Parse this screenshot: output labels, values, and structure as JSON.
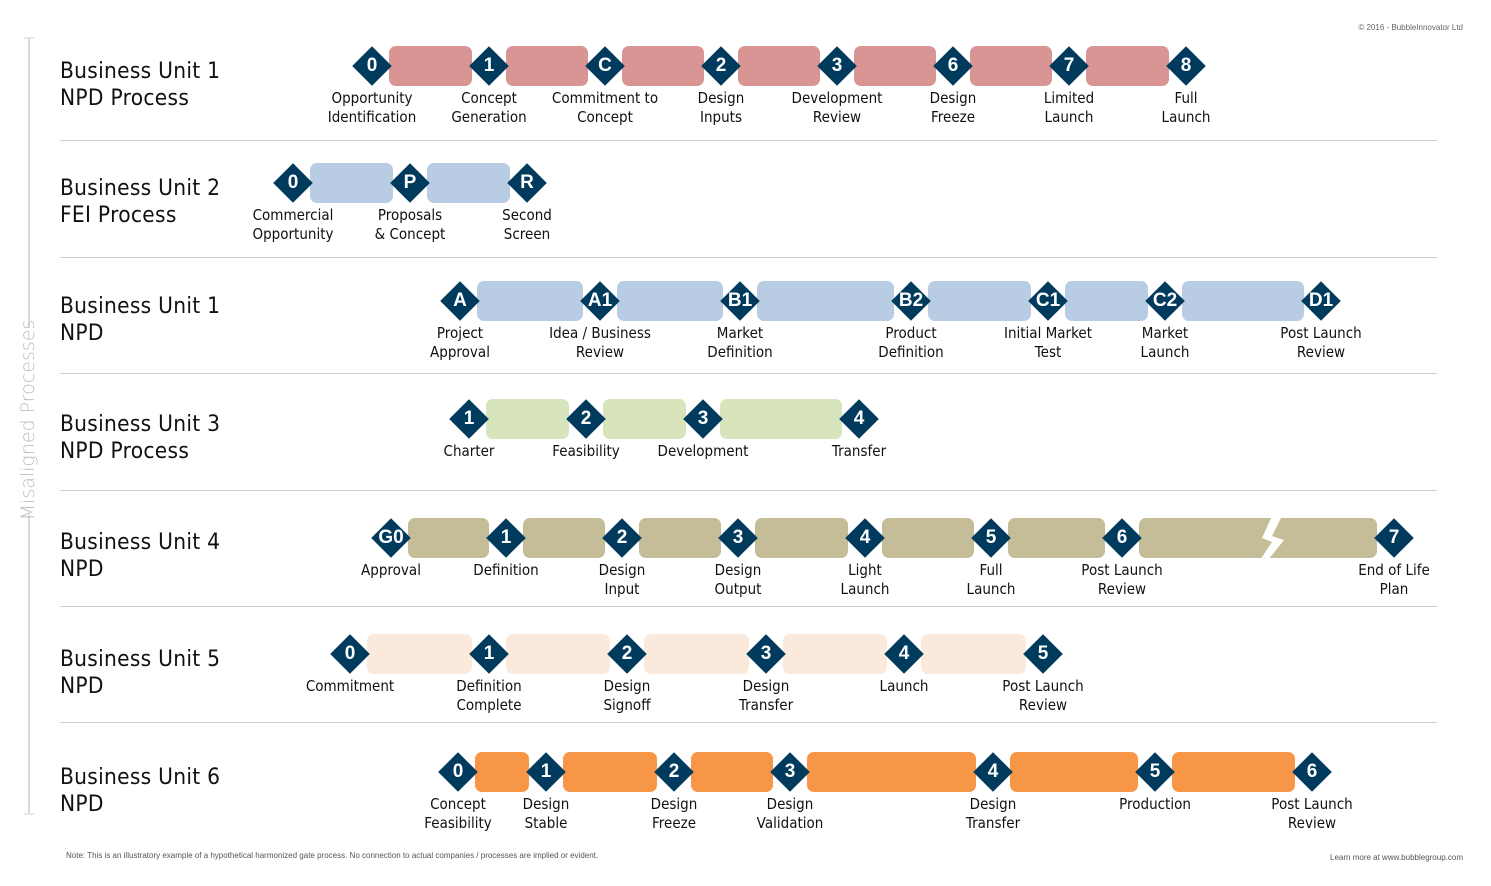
{
  "copyright": "© 2016 -  BubbleInnovator Ltd",
  "side_label": "Misaligned Processes",
  "note": "Note: This is an illustratory example of a hypothetical harmonized gate process. No connection to actual companies / processes are implied or evident.",
  "learn_more": "Learn more at www.bubblegroup.com",
  "gate_color": "#003a5d",
  "rows": [
    {
      "title": "Business Unit 1\nNPD Process",
      "bar_color": "#d99594",
      "gates": [
        {
          "id": "0",
          "label": "Opportunity\nIdentification"
        },
        {
          "id": "1",
          "label": "Concept\nGeneration"
        },
        {
          "id": "C",
          "label": "Commitment to\nConcept"
        },
        {
          "id": "2",
          "label": "Design\nInputs"
        },
        {
          "id": "3",
          "label": "Development\nReview"
        },
        {
          "id": "6",
          "label": "Design\nFreeze"
        },
        {
          "id": "7",
          "label": "Limited\nLaunch"
        },
        {
          "id": "8",
          "label": "Full\nLaunch"
        }
      ]
    },
    {
      "title": "Business Unit 2\nFEI Process",
      "bar_color": "#b8cce4",
      "gates": [
        {
          "id": "0",
          "label": "Commercial\nOpportunity"
        },
        {
          "id": "P",
          "label": "Proposals\n& Concept"
        },
        {
          "id": "R",
          "label": "Second\nScreen"
        }
      ]
    },
    {
      "title": "Business Unit 1\nNPD",
      "bar_color": "#b8cce4",
      "gates": [
        {
          "id": "A",
          "label": "Project\nApproval"
        },
        {
          "id": "A1",
          "label": "Idea / Business\nReview"
        },
        {
          "id": "B1",
          "label": "Market\nDefinition"
        },
        {
          "id": "B2",
          "label": "Product\nDefinition"
        },
        {
          "id": "C1",
          "label": "Initial Market\nTest"
        },
        {
          "id": "C2",
          "label": "Market\nLaunch"
        },
        {
          "id": "D1",
          "label": "Post Launch\nReview"
        }
      ]
    },
    {
      "title": "Business Unit 3\nNPD Process",
      "bar_color": "#d7e4bc",
      "gates": [
        {
          "id": "1",
          "label": "Charter"
        },
        {
          "id": "2",
          "label": "Feasibility"
        },
        {
          "id": "3",
          "label": "Development"
        },
        {
          "id": "4",
          "label": "Transfer"
        }
      ]
    },
    {
      "title": "Business Unit 4\nNPD",
      "bar_color": "#c4bd97",
      "gates": [
        {
          "id": "G0",
          "label": "Approval"
        },
        {
          "id": "1",
          "label": "Definition"
        },
        {
          "id": "2",
          "label": "Design\nInput"
        },
        {
          "id": "3",
          "label": "Design\nOutput"
        },
        {
          "id": "4",
          "label": "Light\nLaunch"
        },
        {
          "id": "5",
          "label": "Full\nLaunch"
        },
        {
          "id": "6",
          "label": "Post Launch\nReview"
        },
        {
          "id": "7",
          "label": "End of Life\nPlan"
        }
      ]
    },
    {
      "title": "Business Unit 5\nNPD",
      "bar_color": "#fbeadb",
      "gates": [
        {
          "id": "0",
          "label": "Commitment"
        },
        {
          "id": "1",
          "label": "Definition\nComplete"
        },
        {
          "id": "2",
          "label": "Design\nSignoff"
        },
        {
          "id": "3",
          "label": "Design\nTransfer"
        },
        {
          "id": "4",
          "label": "Launch"
        },
        {
          "id": "5",
          "label": "Post Launch\nReview"
        }
      ]
    },
    {
      "title": "Business Unit 6\nNPD",
      "bar_color": "#f79646",
      "gates": [
        {
          "id": "0",
          "label": "Concept\nFeasibility"
        },
        {
          "id": "1",
          "label": "Design\nStable"
        },
        {
          "id": "2",
          "label": "Design\nFreeze"
        },
        {
          "id": "3",
          "label": "Design\nValidation"
        },
        {
          "id": "4",
          "label": "Design\nTransfer"
        },
        {
          "id": "5",
          "label": "Production"
        },
        {
          "id": "6",
          "label": "Post Launch\nReview"
        }
      ]
    }
  ]
}
